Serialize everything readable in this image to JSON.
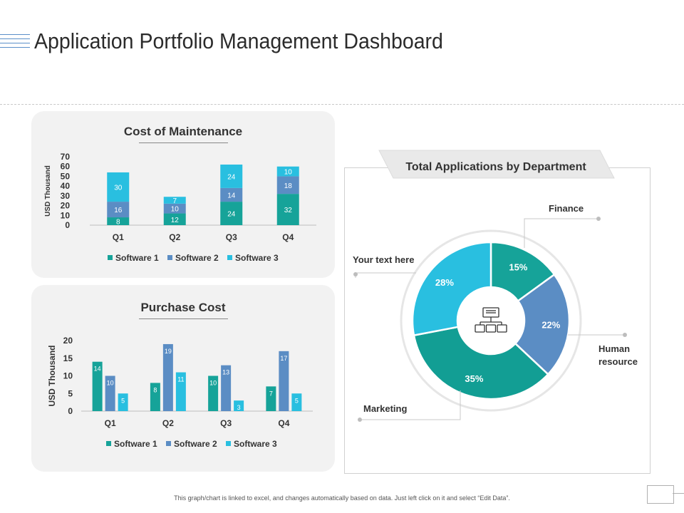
{
  "page": {
    "title": "Application Portfolio Management Dashboard",
    "footer_note": "This graph/chart is linked to excel, and changes automatically based on data. Just left click on it and select “Edit Data”."
  },
  "colors": {
    "software1": "#16a399",
    "software2": "#5b8dc4",
    "software3": "#29bfe0",
    "finance": "#16a399",
    "human_resource": "#5b8dc4",
    "marketing": "#129e94",
    "your_text": "#29bfe0"
  },
  "chart_data": [
    {
      "type": "bar",
      "stacked": true,
      "title": "Cost of Maintenance",
      "ylabel": "USD Thousand",
      "xlabel": "",
      "categories": [
        "Q1",
        "Q2",
        "Q3",
        "Q4"
      ],
      "series": [
        {
          "name": "Software 1",
          "values": [
            8,
            12,
            24,
            32
          ]
        },
        {
          "name": "Software 2",
          "values": [
            16,
            10,
            14,
            18
          ]
        },
        {
          "name": "Software 3",
          "values": [
            30,
            7,
            24,
            10
          ]
        }
      ],
      "ylim": [
        0,
        70
      ],
      "yticks": [
        "70",
        "60",
        "50",
        "40",
        "30",
        "20",
        "10",
        "0"
      ],
      "legend": "bottom"
    },
    {
      "type": "bar",
      "stacked": false,
      "title": "Purchase Cost",
      "ylabel": "USD Thousand",
      "xlabel": "",
      "categories": [
        "Q1",
        "Q2",
        "Q3",
        "Q4"
      ],
      "series": [
        {
          "name": "Software 1",
          "values": [
            14,
            8,
            10,
            7
          ]
        },
        {
          "name": "Software 2",
          "values": [
            10,
            19,
            13,
            17
          ]
        },
        {
          "name": "Software 3",
          "values": [
            5,
            11,
            3,
            5
          ]
        }
      ],
      "ylim": [
        0,
        20
      ],
      "yticks": [
        "20",
        "15",
        "10",
        "5",
        "0"
      ],
      "legend": "bottom"
    },
    {
      "type": "pie",
      "donut": true,
      "title": "Total Applications by Department",
      "slices": [
        {
          "label": "Finance",
          "value": 15,
          "display": "15%"
        },
        {
          "label": "Human resource",
          "value": 22,
          "display": "22%"
        },
        {
          "label": "Marketing",
          "value": 35,
          "display": "35%"
        },
        {
          "label": "Your text here",
          "value": 28,
          "display": "28%"
        }
      ],
      "center_icon": "org-chart-icon"
    }
  ]
}
